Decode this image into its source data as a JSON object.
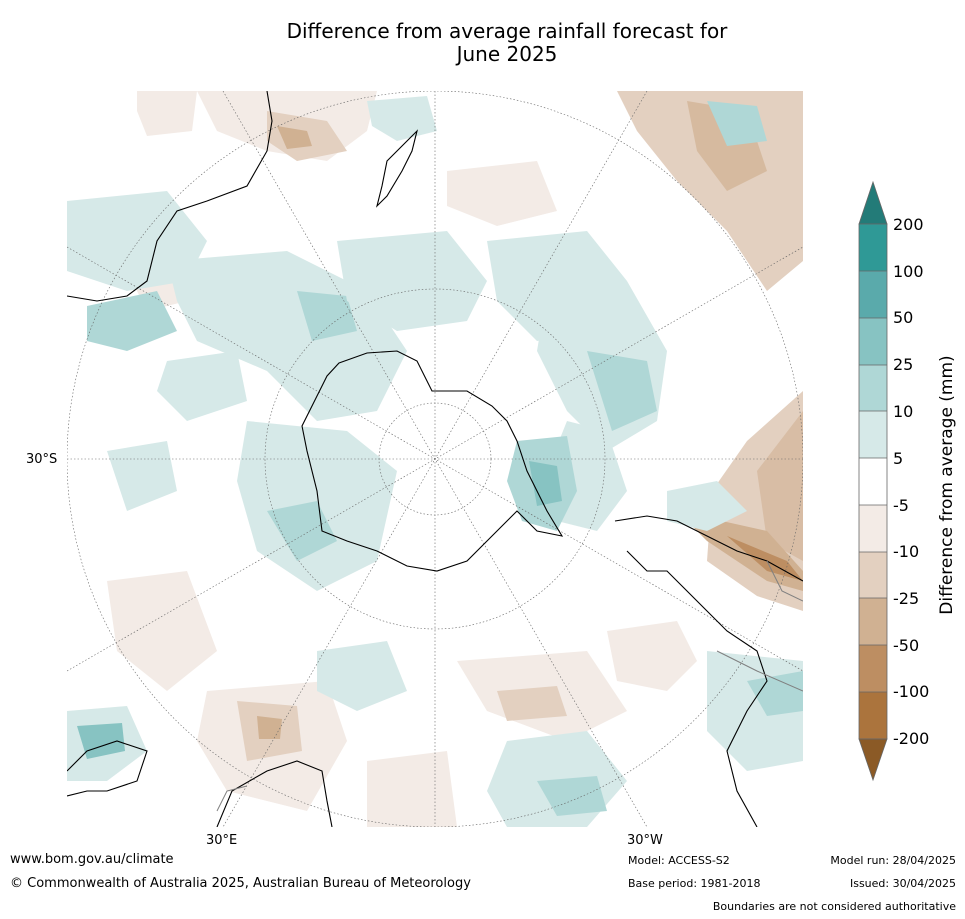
{
  "title": {
    "line1": "Difference from average rainfall forecast for",
    "line2": "June 2025"
  },
  "map": {
    "projection": "south-polar-stereographic",
    "latitude_label": "30°S",
    "longitude_labels": {
      "left": "30°E",
      "right": "30°W"
    },
    "graticule": "dotted grey",
    "land_outline_color": "#000000",
    "boundary_color": "#808080"
  },
  "colorbar": {
    "title": "Difference from average (mm)",
    "ticks": [
      "200",
      "100",
      "50",
      "25",
      "10",
      "5",
      "-5",
      "-10",
      "-25",
      "-50",
      "-100",
      "-200"
    ],
    "colors": {
      "top_arrow": "#237b78",
      "gt_100": "#2f9996",
      "50_100": "#5aaaab",
      "25_50": "#87c3c2",
      "10_25": "#afd7d6",
      "5_10": "#d6e9e8",
      "neutral": "#ffffff",
      "neg5_neg10": "#f3ebe6",
      "neg10_neg25": "#e3d0c0",
      "neg25_neg50": "#d0b192",
      "neg50_neg100": "#bd8e62",
      "lt_neg100": "#ab743d",
      "bottom_arrow": "#8b5a26"
    }
  },
  "footer": {
    "website": "www.bom.gov.au/climate",
    "copyright": "© Commonwealth of Australia 2025, Australian Bureau of Meteorology",
    "model": "Model: ACCESS-S2",
    "base_period": "Base period: 1981-2018",
    "model_run": "Model run: 28/04/2025",
    "issued": "Issued: 30/04/2025",
    "disclaimer": "Boundaries are not considered authoritative"
  }
}
